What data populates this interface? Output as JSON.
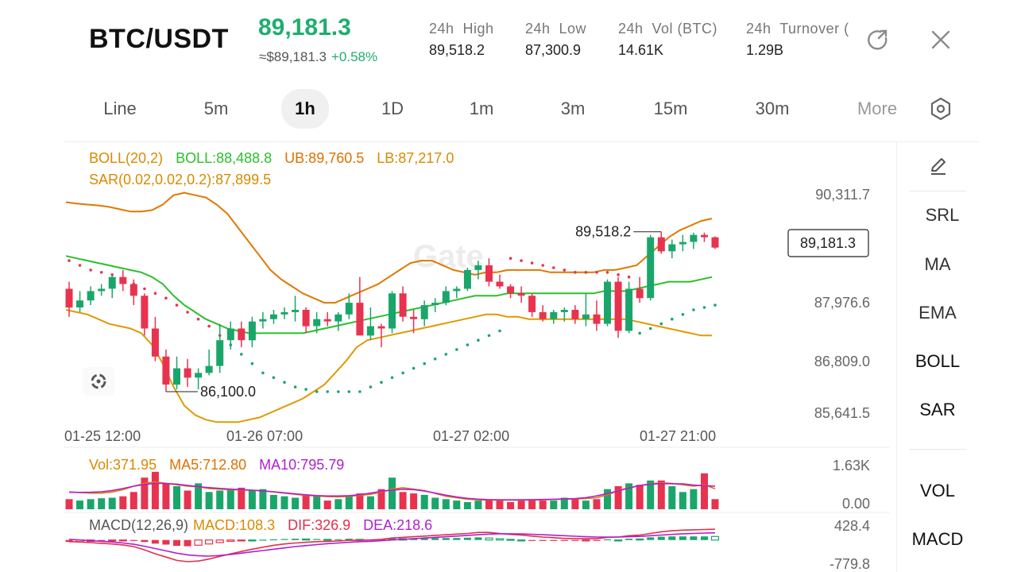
{
  "header": {
    "pair": "BTC/USDT",
    "last_price": "89,181.3",
    "approx_price": "≈$89,181.3",
    "change_pct": "+0.58%",
    "stats": [
      {
        "label": "24h  High",
        "value": "89,518.2"
      },
      {
        "label": "24h  Low",
        "value": "87,300.9"
      },
      {
        "label": "24h  Vol (BTC)",
        "value": "14.61K"
      },
      {
        "label": "24h  Turnover (",
        "value": "1.29B"
      }
    ],
    "share_icon": "share-icon",
    "close_icon": "close-icon"
  },
  "timeframes": {
    "items": [
      "Line",
      "5m",
      "1h",
      "1D",
      "1m",
      "3m",
      "15m",
      "30m",
      "More"
    ],
    "active": "1h",
    "settings_icon": "hexagon-settings-icon"
  },
  "indicators": {
    "boll_params": "BOLL(20,2)",
    "boll_mid": "BOLL:88,488.8",
    "boll_ub": "UB:89,760.5",
    "boll_lb": "LB:87,217.0",
    "sar": "SAR(0.02,0.02,0.2):87,899.5",
    "vol": "Vol:371.95",
    "vol_ma5": "MA5:712.80",
    "vol_ma10": "MA10:795.79",
    "macd_params": "MACD(12,26,9)",
    "macd": "MACD:108.3",
    "dif": "DIF:326.9",
    "dea": "DEA:218.6"
  },
  "side_panel": {
    "items": [
      "SRL",
      "MA",
      "EMA",
      "BOLL",
      "SAR",
      "VOL",
      "MACD"
    ],
    "draw_icon": "pencil-icon"
  },
  "watermark": "Gate",
  "colors": {
    "up": "#1aa66a",
    "down": "#e8334f",
    "accent_green": "#1eae6e"
  },
  "chart_data": {
    "type": "candlestick",
    "interval": "1h",
    "price_axis_ticks": [
      "90,311.7",
      "87,976.6",
      "86,809.0",
      "85,641.5"
    ],
    "time_axis_ticks": [
      "01-25 12:00",
      "01-26 07:00",
      "01-27 02:00",
      "01-27 21:00"
    ],
    "current_price_label": "89,181.3",
    "high_marker": "89,518.2",
    "low_marker": "86,100.0",
    "ylim": [
      85500,
      90500
    ],
    "candles": [
      {
        "o": 88300,
        "h": 88450,
        "l": 87700,
        "c": 87900
      },
      {
        "o": 87900,
        "h": 88250,
        "l": 87800,
        "c": 88050
      },
      {
        "o": 88050,
        "h": 88350,
        "l": 87950,
        "c": 88250
      },
      {
        "o": 88250,
        "h": 88400,
        "l": 88150,
        "c": 88300
      },
      {
        "o": 88300,
        "h": 88600,
        "l": 88100,
        "c": 88550
      },
      {
        "o": 88550,
        "h": 88700,
        "l": 88250,
        "c": 88400
      },
      {
        "o": 88400,
        "h": 88500,
        "l": 87950,
        "c": 88150
      },
      {
        "o": 88150,
        "h": 88200,
        "l": 87300,
        "c": 87450
      },
      {
        "o": 87450,
        "h": 87700,
        "l": 86750,
        "c": 86850
      },
      {
        "o": 86850,
        "h": 87000,
        "l": 86100,
        "c": 86250
      },
      {
        "o": 86250,
        "h": 86850,
        "l": 86150,
        "c": 86600
      },
      {
        "o": 86600,
        "h": 86800,
        "l": 86200,
        "c": 86400
      },
      {
        "o": 86400,
        "h": 86600,
        "l": 86150,
        "c": 86500
      },
      {
        "o": 86500,
        "h": 87000,
        "l": 86450,
        "c": 86650
      },
      {
        "o": 86650,
        "h": 87550,
        "l": 86500,
        "c": 87200
      },
      {
        "o": 87200,
        "h": 87600,
        "l": 87000,
        "c": 87450
      },
      {
        "o": 87450,
        "h": 87600,
        "l": 87050,
        "c": 87200
      },
      {
        "o": 87200,
        "h": 87700,
        "l": 87050,
        "c": 87600
      },
      {
        "o": 87600,
        "h": 87800,
        "l": 87450,
        "c": 87650
      },
      {
        "o": 87650,
        "h": 87850,
        "l": 87550,
        "c": 87750
      },
      {
        "o": 87750,
        "h": 87900,
        "l": 87650,
        "c": 87800
      },
      {
        "o": 87800,
        "h": 88150,
        "l": 87600,
        "c": 87850
      },
      {
        "o": 87850,
        "h": 87900,
        "l": 87350,
        "c": 87500
      },
      {
        "o": 87500,
        "h": 87800,
        "l": 87350,
        "c": 87650
      },
      {
        "o": 87650,
        "h": 87800,
        "l": 87500,
        "c": 87600
      },
      {
        "o": 87600,
        "h": 87800,
        "l": 87400,
        "c": 87750
      },
      {
        "o": 87750,
        "h": 88200,
        "l": 87650,
        "c": 88000
      },
      {
        "o": 88000,
        "h": 88550,
        "l": 87300,
        "c": 87300
      },
      {
        "o": 87300,
        "h": 87900,
        "l": 87200,
        "c": 87500
      },
      {
        "o": 87500,
        "h": 87550,
        "l": 87050,
        "c": 87450
      },
      {
        "o": 87450,
        "h": 88250,
        "l": 87350,
        "c": 88200
      },
      {
        "o": 88200,
        "h": 88350,
        "l": 87600,
        "c": 87700
      },
      {
        "o": 87700,
        "h": 87850,
        "l": 87350,
        "c": 87650
      },
      {
        "o": 87650,
        "h": 88050,
        "l": 87500,
        "c": 87950
      },
      {
        "o": 87950,
        "h": 88100,
        "l": 87800,
        "c": 88000
      },
      {
        "o": 88000,
        "h": 88350,
        "l": 87950,
        "c": 88250
      },
      {
        "o": 88250,
        "h": 88350,
        "l": 88100,
        "c": 88300
      },
      {
        "o": 88300,
        "h": 88750,
        "l": 88250,
        "c": 88700
      },
      {
        "o": 88700,
        "h": 88900,
        "l": 88500,
        "c": 88800
      },
      {
        "o": 88800,
        "h": 88950,
        "l": 88350,
        "c": 88450
      },
      {
        "o": 88450,
        "h": 88600,
        "l": 88300,
        "c": 88350
      },
      {
        "o": 88350,
        "h": 88400,
        "l": 88100,
        "c": 88200
      },
      {
        "o": 88200,
        "h": 88350,
        "l": 88000,
        "c": 88150
      },
      {
        "o": 88150,
        "h": 88200,
        "l": 87700,
        "c": 87800
      },
      {
        "o": 87800,
        "h": 87950,
        "l": 87600,
        "c": 87650
      },
      {
        "o": 87650,
        "h": 87850,
        "l": 87550,
        "c": 87800
      },
      {
        "o": 87800,
        "h": 87900,
        "l": 87600,
        "c": 87850
      },
      {
        "o": 87850,
        "h": 87950,
        "l": 87550,
        "c": 87650
      },
      {
        "o": 87650,
        "h": 88200,
        "l": 87500,
        "c": 87750
      },
      {
        "o": 87750,
        "h": 88050,
        "l": 87400,
        "c": 87550
      },
      {
        "o": 87550,
        "h": 88500,
        "l": 87500,
        "c": 88450
      },
      {
        "o": 88450,
        "h": 88550,
        "l": 87250,
        "c": 87400
      },
      {
        "o": 87400,
        "h": 88450,
        "l": 87350,
        "c": 88300
      },
      {
        "o": 88300,
        "h": 88550,
        "l": 88000,
        "c": 88100
      },
      {
        "o": 88100,
        "h": 89450,
        "l": 88050,
        "c": 89400
      },
      {
        "o": 89400,
        "h": 89518,
        "l": 89050,
        "c": 89100
      },
      {
        "o": 89100,
        "h": 89350,
        "l": 88950,
        "c": 89250
      },
      {
        "o": 89250,
        "h": 89450,
        "l": 89100,
        "c": 89300
      },
      {
        "o": 89300,
        "h": 89500,
        "l": 89150,
        "c": 89450
      },
      {
        "o": 89450,
        "h": 89500,
        "l": 89300,
        "c": 89400
      },
      {
        "o": 89400,
        "h": 89420,
        "l": 89150,
        "c": 89180
      }
    ],
    "boll_upper": [
      90150,
      90120,
      90100,
      90080,
      90050,
      90000,
      89950,
      89950,
      89980,
      90100,
      90300,
      90350,
      90300,
      90250,
      90100,
      89900,
      89600,
      89300,
      89000,
      88700,
      88500,
      88350,
      88200,
      88100,
      88000,
      88000,
      88100,
      88200,
      88300,
      88400,
      88550,
      88700,
      88850,
      88900,
      88900,
      88800,
      88700,
      88650,
      88600,
      88650,
      88650,
      88700,
      88700,
      88700,
      88700,
      88650,
      88650,
      88650,
      88650,
      88650,
      88700,
      88700,
      88750,
      88800,
      89000,
      89200,
      89400,
      89550,
      89650,
      89750,
      89800
    ],
    "boll_mid": [
      89000,
      88950,
      88900,
      88850,
      88800,
      88750,
      88700,
      88650,
      88550,
      88400,
      88150,
      87950,
      87800,
      87650,
      87550,
      87450,
      87400,
      87350,
      87350,
      87350,
      87350,
      87350,
      87350,
      87400,
      87450,
      87500,
      87550,
      87600,
      87650,
      87700,
      87750,
      87800,
      87850,
      87900,
      87950,
      88000,
      88050,
      88100,
      88150,
      88150,
      88150,
      88200,
      88200,
      88200,
      88200,
      88200,
      88200,
      88200,
      88200,
      88200,
      88250,
      88250,
      88250,
      88300,
      88350,
      88400,
      88450,
      88450,
      88450,
      88500,
      88550
    ],
    "boll_lower": [
      87850,
      87800,
      87750,
      87650,
      87550,
      87500,
      87450,
      87350,
      87100,
      86700,
      86200,
      85800,
      85600,
      85500,
      85450,
      85450,
      85450,
      85500,
      85550,
      85650,
      85750,
      85850,
      85950,
      86100,
      86250,
      86500,
      86750,
      87050,
      87200,
      87250,
      87300,
      87350,
      87400,
      87450,
      87500,
      87550,
      87600,
      87650,
      87700,
      87750,
      87750,
      87700,
      87700,
      87650,
      87650,
      87650,
      87650,
      87650,
      87650,
      87650,
      87650,
      87650,
      87650,
      87600,
      87550,
      87500,
      87450,
      87400,
      87350,
      87300,
      87300
    ],
    "sar": [
      88900,
      88800,
      88700,
      88650,
      88600,
      88500,
      88400,
      88300,
      88200,
      88100,
      87950,
      87800,
      87650,
      87500,
      87300,
      87100,
      86900,
      86700,
      86500,
      86400,
      86300,
      86200,
      86150,
      86100,
      86100,
      86100,
      86100,
      86100,
      86200,
      86300,
      86400,
      86500,
      86600,
      86700,
      86800,
      86900,
      87000,
      87100,
      87200,
      87300,
      87400,
      88950,
      88900,
      88850,
      88800,
      88750,
      88700,
      88650,
      88650,
      88650,
      88650,
      88600,
      88550,
      87350,
      87450,
      87550,
      87650,
      87750,
      87850,
      87900,
      87950
    ],
    "volume": {
      "ylim": [
        0,
        1630
      ],
      "ticks": [
        "1.63K",
        "0.00"
      ],
      "values": [
        350,
        300,
        350,
        380,
        400,
        450,
        600,
        1100,
        1300,
        900,
        800,
        650,
        900,
        600,
        650,
        700,
        750,
        650,
        700,
        500,
        450,
        400,
        500,
        450,
        300,
        350,
        450,
        550,
        450,
        700,
        1100,
        600,
        550,
        500,
        400,
        350,
        300,
        250,
        300,
        350,
        300,
        250,
        300,
        350,
        300,
        300,
        400,
        350,
        300,
        350,
        700,
        800,
        900,
        850,
        1000,
        1000,
        800,
        600,
        700,
        1250,
        350
      ],
      "ma5": [
        600,
        580,
        560,
        560,
        600,
        680,
        800,
        900,
        950,
        900,
        850,
        800,
        780,
        720,
        700,
        680,
        670,
        660,
        640,
        600,
        560,
        520,
        480,
        460,
        440,
        430,
        450,
        480,
        520,
        600,
        700,
        750,
        700,
        650,
        550,
        450,
        400,
        350,
        330,
        320,
        320,
        320,
        320,
        320,
        330,
        340,
        350,
        360,
        370,
        400,
        500,
        650,
        750,
        830,
        880,
        920,
        900,
        850,
        800,
        850,
        712
      ]
    },
    "macd": {
      "ylim": [
        -779.8,
        428.4
      ],
      "ticks": [
        "428.4",
        "-779.8"
      ],
      "hist": [
        -60,
        -50,
        -40,
        -40,
        -30,
        -20,
        -30,
        -60,
        -110,
        -140,
        -180,
        -190,
        -160,
        -120,
        -80,
        -40,
        -20,
        0,
        10,
        20,
        30,
        40,
        30,
        30,
        20,
        20,
        40,
        20,
        20,
        30,
        60,
        40,
        40,
        50,
        60,
        60,
        60,
        70,
        80,
        60,
        40,
        20,
        0,
        -20,
        -30,
        -30,
        -30,
        -30,
        -20,
        -20,
        20,
        0,
        40,
        30,
        80,
        100,
        110,
        110,
        110,
        110,
        108
      ],
      "dif": [
        -50,
        -60,
        -80,
        -100,
        -120,
        -150,
        -200,
        -300,
        -420,
        -520,
        -620,
        -660,
        -640,
        -580,
        -500,
        -420,
        -350,
        -280,
        -220,
        -160,
        -120,
        -90,
        -70,
        -50,
        -40,
        -30,
        -10,
        -10,
        0,
        20,
        60,
        80,
        100,
        120,
        140,
        160,
        180,
        200,
        230,
        230,
        200,
        170,
        150,
        120,
        90,
        70,
        50,
        40,
        40,
        40,
        80,
        90,
        130,
        150,
        200,
        250,
        280,
        300,
        310,
        320,
        327
      ],
      "dea": [
        20,
        0,
        -20,
        -40,
        -60,
        -90,
        -130,
        -190,
        -260,
        -330,
        -400,
        -450,
        -480,
        -490,
        -470,
        -440,
        -400,
        -360,
        -320,
        -280,
        -240,
        -200,
        -170,
        -140,
        -110,
        -90,
        -70,
        -50,
        -40,
        -20,
        0,
        20,
        40,
        60,
        80,
        100,
        120,
        140,
        160,
        180,
        190,
        190,
        185,
        175,
        160,
        145,
        130,
        115,
        100,
        90,
        90,
        90,
        100,
        110,
        130,
        150,
        170,
        190,
        200,
        210,
        219
      ]
    }
  }
}
